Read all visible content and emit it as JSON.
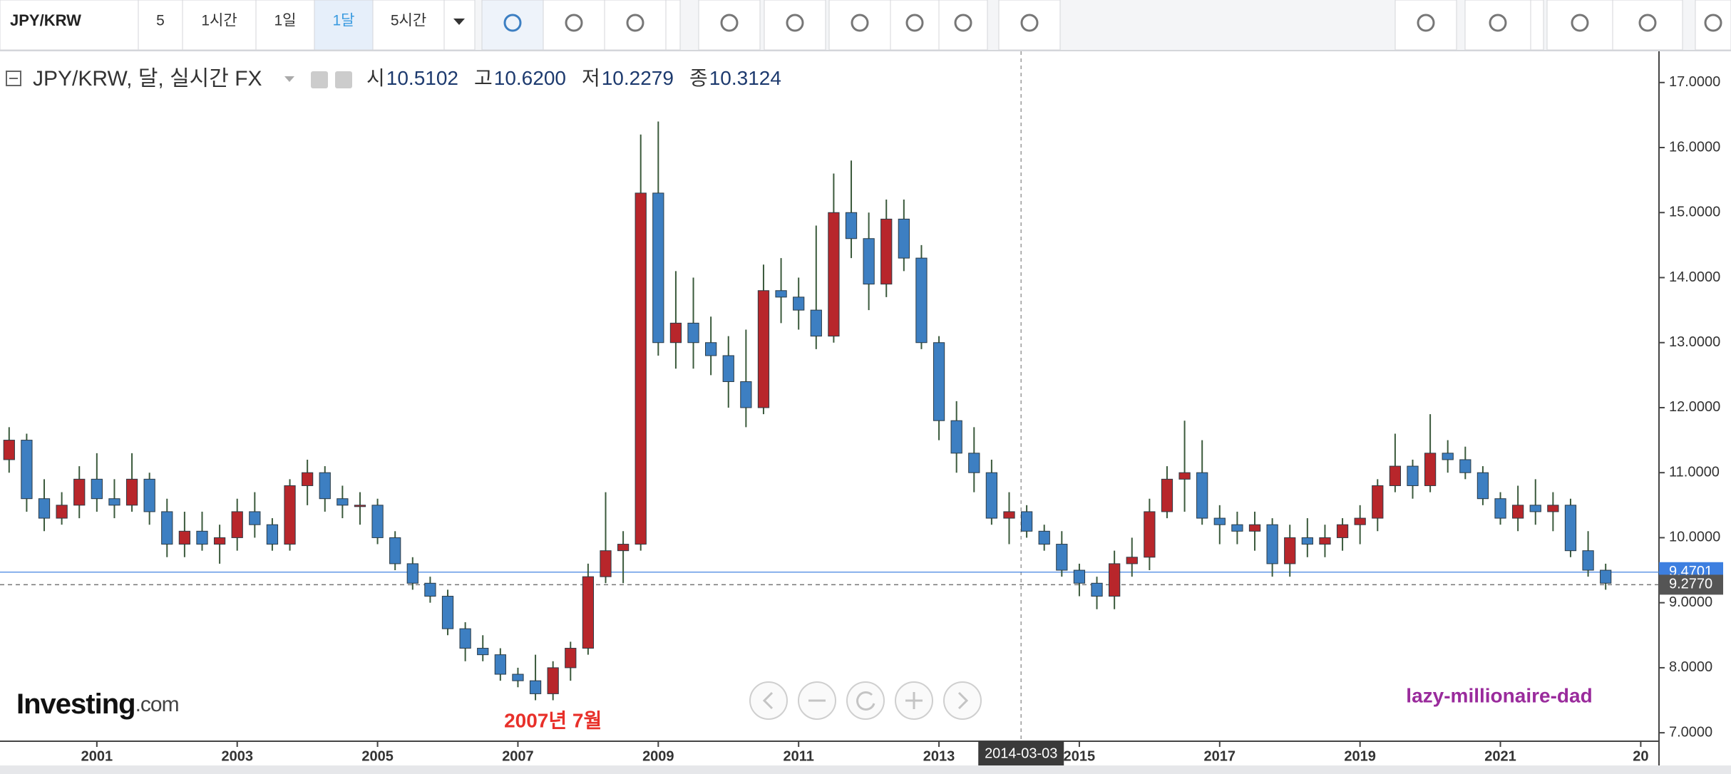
{
  "toolbar": {
    "symbol": "JPY/KRW",
    "intervals": [
      "5",
      "1시간",
      "1일",
      "1달",
      "5시간"
    ],
    "active": 3
  },
  "header": {
    "ohlc": [
      {
        "label": "시",
        "value": "10.5102"
      },
      {
        "label": "고",
        "value": "10.6200"
      },
      {
        "label": "저",
        "value": "10.2279"
      },
      {
        "label": "종",
        "value": "10.3124"
      }
    ]
  },
  "watermark": "Investing",
  "watermark_suffix": ".com",
  "signature": "lazy-millionaire-dad",
  "chart_data": {
    "type": "candlestick",
    "title": "JPY/KRW, 달, 실시간 FX",
    "up_color": "#b8262b",
    "down_color": "#3d7fc2",
    "wick_color": "#3b5a3c",
    "x": [
      1999.75,
      2000,
      2000.25,
      2000.5,
      2000.75,
      2001,
      2001.25,
      2001.5,
      2001.75,
      2002,
      2002.25,
      2002.5,
      2002.75,
      2003,
      2003.25,
      2003.5,
      2003.75,
      2004,
      2004.25,
      2004.5,
      2004.75,
      2005,
      2005.25,
      2005.5,
      2005.75,
      2006,
      2006.25,
      2006.5,
      2006.75,
      2007,
      2007.25,
      2007.5,
      2007.75,
      2008,
      2008.25,
      2008.5,
      2008.75,
      2009,
      2009.25,
      2009.5,
      2009.75,
      2010,
      2010.25,
      2010.5,
      2010.75,
      2011,
      2011.25,
      2011.5,
      2011.75,
      2012,
      2012.25,
      2012.5,
      2012.75,
      2013,
      2013.25,
      2013.5,
      2013.75,
      2014,
      2014.25,
      2014.5,
      2014.75,
      2015,
      2015.25,
      2015.5,
      2015.75,
      2016,
      2016.25,
      2016.5,
      2016.75,
      2017,
      2017.25,
      2017.5,
      2017.75,
      2018,
      2018.25,
      2018.5,
      2018.75,
      2019,
      2019.25,
      2019.5,
      2019.75,
      2020,
      2020.25,
      2020.5,
      2020.75,
      2021,
      2021.25,
      2021.5,
      2021.75,
      2022,
      2022.25,
      2022.5
    ],
    "open": [
      11.2,
      11.5,
      10.6,
      10.3,
      10.5,
      10.9,
      10.6,
      10.5,
      10.9,
      10.4,
      9.9,
      10.1,
      9.9,
      10.0,
      10.4,
      10.2,
      9.9,
      10.8,
      11.0,
      10.6,
      10.5,
      10.5,
      10.0,
      9.6,
      9.3,
      9.1,
      8.6,
      8.3,
      8.2,
      7.9,
      7.8,
      7.6,
      8.0,
      8.3,
      9.4,
      9.8,
      9.9,
      15.3,
      13.0,
      13.3,
      13.0,
      12.8,
      12.4,
      12.0,
      13.8,
      13.7,
      13.5,
      13.1,
      15.0,
      14.6,
      13.9,
      14.9,
      14.3,
      13.0,
      11.8,
      11.3,
      11.0,
      10.3,
      10.4,
      10.1,
      9.9,
      9.5,
      9.3,
      9.1,
      9.6,
      9.7,
      10.4,
      10.9,
      11.0,
      10.3,
      10.2,
      10.1,
      10.2,
      9.6,
      10.0,
      9.9,
      10.0,
      10.2,
      10.3,
      10.8,
      11.1,
      10.8,
      11.3,
      11.2,
      11.0,
      10.6,
      10.3,
      10.5,
      10.4,
      10.5,
      9.8,
      9.5
    ],
    "high": [
      11.7,
      11.6,
      10.9,
      10.7,
      11.1,
      11.3,
      10.9,
      11.3,
      11.0,
      10.6,
      10.4,
      10.4,
      10.2,
      10.6,
      10.7,
      10.3,
      10.9,
      11.2,
      11.1,
      10.8,
      10.7,
      10.6,
      10.1,
      9.7,
      9.4,
      9.2,
      8.7,
      8.5,
      8.3,
      8.0,
      8.2,
      8.1,
      8.4,
      9.6,
      10.7,
      10.1,
      16.2,
      16.4,
      14.1,
      14.0,
      13.4,
      13.1,
      13.2,
      14.2,
      14.3,
      14.0,
      14.8,
      15.6,
      15.8,
      15.0,
      15.2,
      15.2,
      14.5,
      13.1,
      12.1,
      11.7,
      11.2,
      10.7,
      10.5,
      10.2,
      10.1,
      9.6,
      9.4,
      9.8,
      10.0,
      10.6,
      11.1,
      11.8,
      11.5,
      10.5,
      10.4,
      10.4,
      10.3,
      10.2,
      10.3,
      10.2,
      10.3,
      10.5,
      10.9,
      11.6,
      11.2,
      11.9,
      11.5,
      11.4,
      11.1,
      10.7,
      10.8,
      10.9,
      10.7,
      10.6,
      10.1,
      9.6
    ],
    "low": [
      11.0,
      10.4,
      10.1,
      10.2,
      10.3,
      10.4,
      10.3,
      10.4,
      10.2,
      9.7,
      9.7,
      9.8,
      9.6,
      9.8,
      10.0,
      9.8,
      9.8,
      10.5,
      10.4,
      10.3,
      10.2,
      9.9,
      9.5,
      9.2,
      9.0,
      8.5,
      8.1,
      8.1,
      7.8,
      7.7,
      7.5,
      7.5,
      7.8,
      8.2,
      9.3,
      9.3,
      9.8,
      12.8,
      12.6,
      12.6,
      12.5,
      12.0,
      11.7,
      11.9,
      13.3,
      13.2,
      12.9,
      13.0,
      14.3,
      13.5,
      13.7,
      14.1,
      12.9,
      11.5,
      11.0,
      10.7,
      10.2,
      9.9,
      10.0,
      9.8,
      9.4,
      9.1,
      8.9,
      8.9,
      9.4,
      9.5,
      10.3,
      10.4,
      10.2,
      9.9,
      9.9,
      9.8,
      9.4,
      9.4,
      9.7,
      9.7,
      9.8,
      9.9,
      10.1,
      10.7,
      10.6,
      10.7,
      11.0,
      10.9,
      10.5,
      10.2,
      10.1,
      10.2,
      10.1,
      9.7,
      9.4,
      9.2
    ],
    "close": [
      11.5,
      10.6,
      10.3,
      10.5,
      10.9,
      10.6,
      10.5,
      10.9,
      10.4,
      9.9,
      10.1,
      9.9,
      10.0,
      10.4,
      10.2,
      9.9,
      10.8,
      11.0,
      10.6,
      10.5,
      10.5,
      10.0,
      9.6,
      9.3,
      9.1,
      8.6,
      8.3,
      8.2,
      7.9,
      7.8,
      7.6,
      8.0,
      8.3,
      9.4,
      9.8,
      9.9,
      15.3,
      13.0,
      13.3,
      13.0,
      12.8,
      12.4,
      12.0,
      13.8,
      13.7,
      13.5,
      13.1,
      15.0,
      14.6,
      13.9,
      14.9,
      14.3,
      13.0,
      11.8,
      11.3,
      11.0,
      10.3,
      10.4,
      10.1,
      9.9,
      9.5,
      9.3,
      9.1,
      9.6,
      9.7,
      10.4,
      10.9,
      11.0,
      10.3,
      10.2,
      10.1,
      10.2,
      9.6,
      10.0,
      9.9,
      10.0,
      10.2,
      10.3,
      10.8,
      11.1,
      10.8,
      11.3,
      11.2,
      11.0,
      10.6,
      10.3,
      10.5,
      10.4,
      10.5,
      9.8,
      9.5,
      9.3
    ],
    "xlim": [
      1999.62,
      2023.26
    ],
    "ylim": [
      6.87,
      17.48
    ],
    "xticks": [
      2001,
      2003,
      2005,
      2007,
      2009,
      2011,
      2013,
      2015,
      2017,
      2019,
      2021,
      {
        "value": 2023,
        "label": "20"
      }
    ],
    "yticks": [
      {
        "value": 7,
        "label": "7.0000"
      },
      {
        "value": 8,
        "label": "8.0000"
      },
      {
        "value": 9,
        "label": "9.0000"
      },
      {
        "value": 10,
        "label": "10.0000"
      },
      {
        "value": 11,
        "label": "11.0000"
      },
      {
        "value": 12,
        "label": "12.0000"
      },
      {
        "value": 13,
        "label": "13.0000"
      },
      {
        "value": 14,
        "label": "14.0000"
      },
      {
        "value": 15,
        "label": "15.0000"
      },
      {
        "value": 16,
        "label": "16.0000"
      },
      {
        "value": 17,
        "label": "17.0000"
      }
    ],
    "price_lines": [
      {
        "value": 9.4701,
        "label": "9.4701",
        "color": "#3d7fe0",
        "style": "solid"
      },
      {
        "value": 9.277,
        "label": "9.2770",
        "color": "#555555",
        "style": "dashed"
      }
    ],
    "crosshair": {
      "value": 2014.17,
      "label": "2014-03-03"
    },
    "annotations": [
      {
        "text": "2007년 7월",
        "x": 2007.5,
        "color": "#e8302a"
      }
    ]
  }
}
